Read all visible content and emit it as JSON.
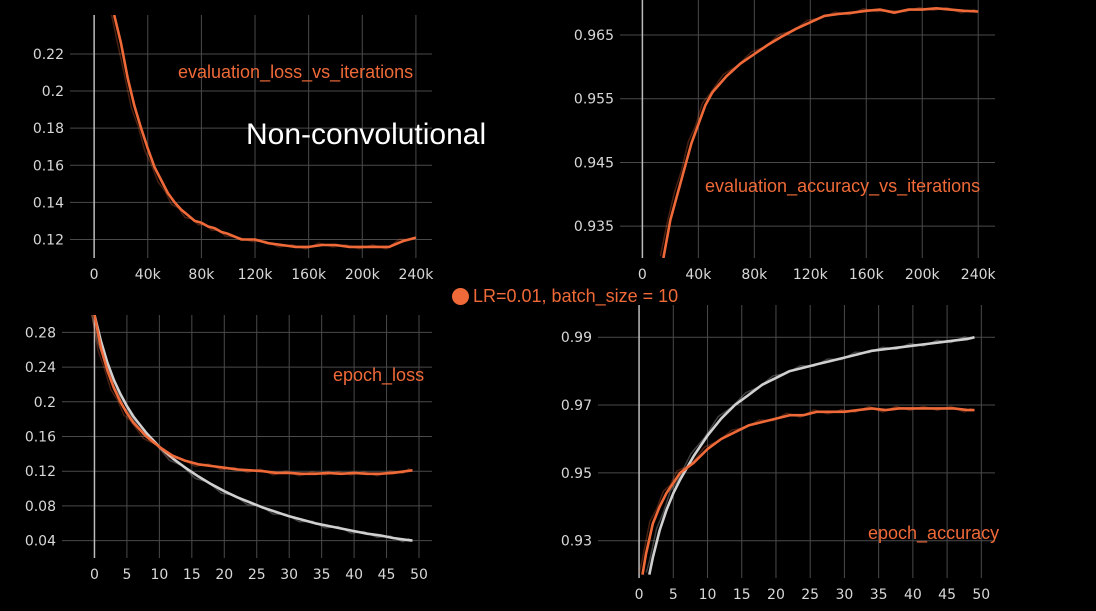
{
  "heading": "Non-convolutional",
  "legend_label": "LR=0.01, batch_size = 10",
  "colors": {
    "orange": "#ef6a38",
    "gray": "#d0d0d0",
    "grid": "#4a4a4a",
    "background": "#000000"
  },
  "chart_data": [
    {
      "id": "eval_loss",
      "type": "line",
      "title": "evaluation_loss_vs_iterations",
      "xticks": [
        0,
        40000,
        80000,
        120000,
        160000,
        200000,
        240000
      ],
      "xtick_labels": [
        "0",
        "40k",
        "80k",
        "120k",
        "160k",
        "200k",
        "240k"
      ],
      "yticks": [
        0.12,
        0.14,
        0.16,
        0.18,
        0.2,
        0.22
      ],
      "ytick_labels": [
        "0.12",
        "0.14",
        "0.16",
        "0.18",
        "0.2",
        "0.22"
      ],
      "xlim": [
        -18000,
        252000
      ],
      "ylim": [
        0.11,
        0.241
      ],
      "series": [
        {
          "color": "orange",
          "x": [
            15000,
            20000,
            25000,
            30000,
            35000,
            40000,
            45000,
            50000,
            55000,
            60000,
            65000,
            70000,
            75000,
            80000,
            85000,
            90000,
            95000,
            100000,
            110000,
            120000,
            130000,
            140000,
            150000,
            160000,
            170000,
            180000,
            190000,
            200000,
            210000,
            220000,
            230000,
            240000
          ],
          "y": [
            0.241,
            0.226,
            0.207,
            0.192,
            0.18,
            0.169,
            0.159,
            0.152,
            0.145,
            0.14,
            0.136,
            0.133,
            0.13,
            0.129,
            0.127,
            0.126,
            0.124,
            0.123,
            0.12,
            0.12,
            0.118,
            0.117,
            0.116,
            0.116,
            0.117,
            0.117,
            0.116,
            0.116,
            0.116,
            0.116,
            0.119,
            0.121
          ]
        }
      ]
    },
    {
      "id": "eval_acc",
      "type": "line",
      "title": "evaluation_accuracy_vs_iterations",
      "xticks": [
        0,
        40000,
        80000,
        120000,
        160000,
        200000,
        240000
      ],
      "xtick_labels": [
        "0",
        "40k",
        "80k",
        "120k",
        "160k",
        "200k",
        "240k"
      ],
      "yticks": [
        0.935,
        0.945,
        0.955,
        0.965
      ],
      "ytick_labels": [
        "0.935",
        "0.945",
        "0.955",
        "0.965"
      ],
      "xlim": [
        -16000,
        252000
      ],
      "ylim": [
        0.93,
        0.9705
      ],
      "series": [
        {
          "color": "orange",
          "x": [
            15000,
            20000,
            25000,
            30000,
            35000,
            40000,
            45000,
            50000,
            60000,
            70000,
            80000,
            90000,
            100000,
            110000,
            120000,
            130000,
            140000,
            150000,
            160000,
            170000,
            180000,
            190000,
            200000,
            210000,
            220000,
            230000,
            240000
          ],
          "y": [
            0.93,
            0.936,
            0.94,
            0.944,
            0.948,
            0.951,
            0.954,
            0.956,
            0.9585,
            0.9605,
            0.962,
            0.9635,
            0.9648,
            0.966,
            0.967,
            0.968,
            0.9683,
            0.9685,
            0.9688,
            0.969,
            0.9685,
            0.969,
            0.969,
            0.9692,
            0.969,
            0.9688,
            0.9687
          ]
        }
      ]
    },
    {
      "id": "epoch_loss",
      "type": "line",
      "title": "epoch_loss",
      "xticks": [
        0,
        5,
        10,
        15,
        20,
        25,
        30,
        35,
        40,
        45,
        50
      ],
      "xtick_labels": [
        "0",
        "5",
        "10",
        "15",
        "20",
        "25",
        "30",
        "35",
        "40",
        "45",
        "50"
      ],
      "yticks": [
        0.04,
        0.08,
        0.12,
        0.16,
        0.2,
        0.24,
        0.28
      ],
      "ytick_labels": [
        "0.04",
        "0.08",
        "0.12",
        "0.16",
        "0.2",
        "0.24",
        "0.28"
      ],
      "xlim": [
        -5,
        52
      ],
      "ylim": [
        0.02,
        0.3
      ],
      "series": [
        {
          "color": "gray",
          "x": [
            0,
            1,
            2,
            3,
            4,
            5,
            6,
            8,
            10,
            12,
            14,
            16,
            18,
            20,
            22,
            24,
            26,
            28,
            30,
            32,
            34,
            36,
            38,
            40,
            42,
            44,
            46,
            48,
            49
          ],
          "y": [
            0.3,
            0.27,
            0.245,
            0.225,
            0.209,
            0.195,
            0.183,
            0.164,
            0.148,
            0.135,
            0.124,
            0.114,
            0.105,
            0.097,
            0.09,
            0.084,
            0.078,
            0.073,
            0.068,
            0.064,
            0.06,
            0.057,
            0.054,
            0.051,
            0.048,
            0.046,
            0.043,
            0.041,
            0.04
          ]
        },
        {
          "color": "orange",
          "x": [
            0,
            1,
            2,
            3,
            4,
            5,
            6,
            8,
            10,
            12,
            14,
            16,
            18,
            20,
            22,
            24,
            26,
            28,
            30,
            32,
            34,
            36,
            38,
            40,
            42,
            44,
            46,
            48,
            49
          ],
          "y": [
            0.3,
            0.262,
            0.236,
            0.216,
            0.2,
            0.187,
            0.176,
            0.16,
            0.148,
            0.138,
            0.132,
            0.128,
            0.126,
            0.124,
            0.122,
            0.121,
            0.12,
            0.118,
            0.118,
            0.117,
            0.117,
            0.118,
            0.117,
            0.118,
            0.117,
            0.117,
            0.118,
            0.12,
            0.121
          ]
        }
      ]
    },
    {
      "id": "epoch_acc",
      "type": "line",
      "title": "epoch_accuracy",
      "xticks": [
        0,
        5,
        10,
        15,
        20,
        25,
        30,
        35,
        40,
        45,
        50
      ],
      "xtick_labels": [
        "0",
        "5",
        "10",
        "15",
        "20",
        "25",
        "30",
        "35",
        "40",
        "45",
        "50"
      ],
      "yticks": [
        0.93,
        0.95,
        0.97,
        0.99
      ],
      "ytick_labels": [
        "0.93",
        "0.95",
        "0.97",
        "0.99"
      ],
      "xlim": [
        -6,
        52
      ],
      "ylim": [
        0.919,
        0.9995
      ],
      "series": [
        {
          "color": "gray",
          "x": [
            1.5,
            2,
            3,
            4,
            5,
            6,
            8,
            10,
            12,
            14,
            16,
            18,
            20,
            22,
            24,
            26,
            28,
            30,
            32,
            34,
            36,
            38,
            40,
            42,
            44,
            46,
            48,
            49
          ],
          "y": [
            0.92,
            0.925,
            0.933,
            0.939,
            0.944,
            0.948,
            0.955,
            0.961,
            0.966,
            0.97,
            0.973,
            0.976,
            0.978,
            0.98,
            0.981,
            0.982,
            0.983,
            0.984,
            0.985,
            0.986,
            0.9865,
            0.987,
            0.9875,
            0.988,
            0.9885,
            0.989,
            0.9895,
            0.99
          ]
        },
        {
          "color": "orange",
          "x": [
            0.5,
            1,
            2,
            3,
            4,
            5,
            6,
            8,
            10,
            12,
            14,
            16,
            18,
            20,
            22,
            24,
            26,
            28,
            30,
            32,
            34,
            36,
            38,
            40,
            42,
            44,
            46,
            48,
            49
          ],
          "y": [
            0.92,
            0.926,
            0.935,
            0.94,
            0.944,
            0.947,
            0.95,
            0.953,
            0.957,
            0.96,
            0.962,
            0.964,
            0.965,
            0.966,
            0.967,
            0.967,
            0.968,
            0.968,
            0.968,
            0.9685,
            0.969,
            0.9685,
            0.969,
            0.969,
            0.969,
            0.969,
            0.969,
            0.9685,
            0.9685
          ]
        }
      ]
    }
  ]
}
